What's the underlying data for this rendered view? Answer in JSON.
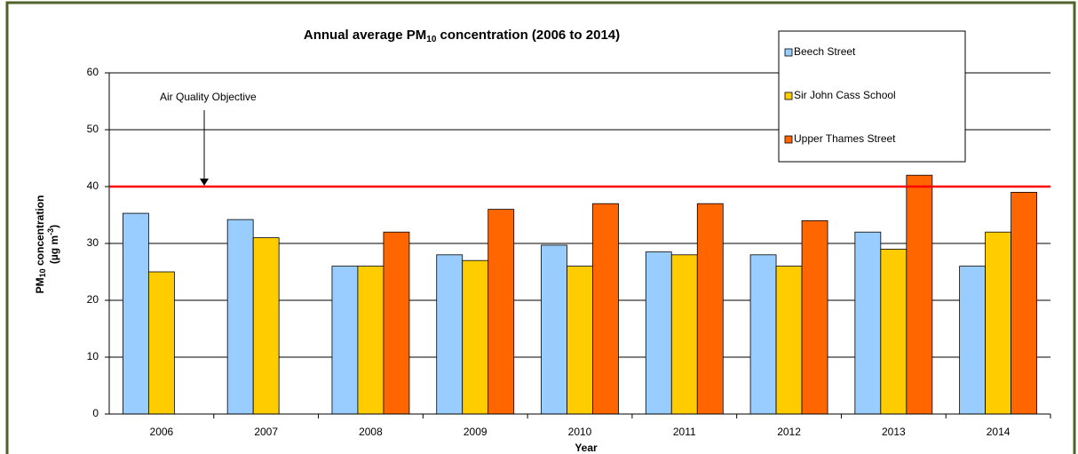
{
  "chart_data": {
    "type": "bar",
    "title": [
      "Annual average PM",
      "10",
      " concentration (2006 to 2014)"
    ],
    "x_label": "Year",
    "y_label": [
      "PM",
      "10",
      " concentration",
      "(µg m",
      "-3",
      ")"
    ],
    "categories": [
      "2006",
      "2007",
      "2008",
      "2009",
      "2010",
      "2011",
      "2012",
      "2013",
      "2014"
    ],
    "series": [
      {
        "name": "Beech Street",
        "color": "#99ccff",
        "values": [
          35.3,
          34.2,
          26,
          28,
          29.7,
          28.5,
          28,
          32,
          26
        ]
      },
      {
        "name": "Sir John Cass School",
        "color": "#ffcc00",
        "values": [
          25,
          31,
          26,
          27,
          26,
          28,
          26,
          29,
          32
        ]
      },
      {
        "name": "Upper Thames Street",
        "color": "#ff6600",
        "values": [
          null,
          null,
          32,
          36,
          37,
          37,
          34,
          42,
          39
        ]
      }
    ],
    "reference_line": {
      "label": "Air Quality Objective",
      "value": 40,
      "color": "#ff0000"
    },
    "ylim": [
      0,
      60
    ],
    "yticks": [
      0,
      10,
      20,
      30,
      40,
      50,
      60
    ],
    "grid": true,
    "legend": "top-right"
  }
}
